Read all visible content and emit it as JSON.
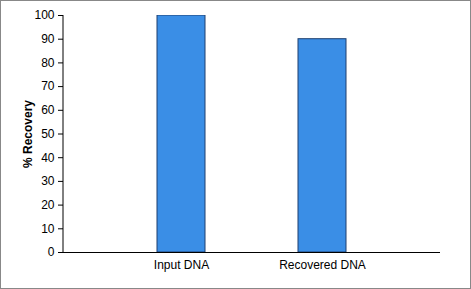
{
  "chart_data": {
    "type": "bar",
    "categories": [
      "Input DNA",
      "Recovered DNA"
    ],
    "values": [
      100,
      90
    ],
    "color": "#3a8ee6",
    "y_label": "% Recovery",
    "ylim": [
      0,
      100
    ],
    "yticks": [
      0,
      10,
      20,
      30,
      40,
      50,
      60,
      70,
      80,
      90,
      100
    ],
    "grid": false
  }
}
